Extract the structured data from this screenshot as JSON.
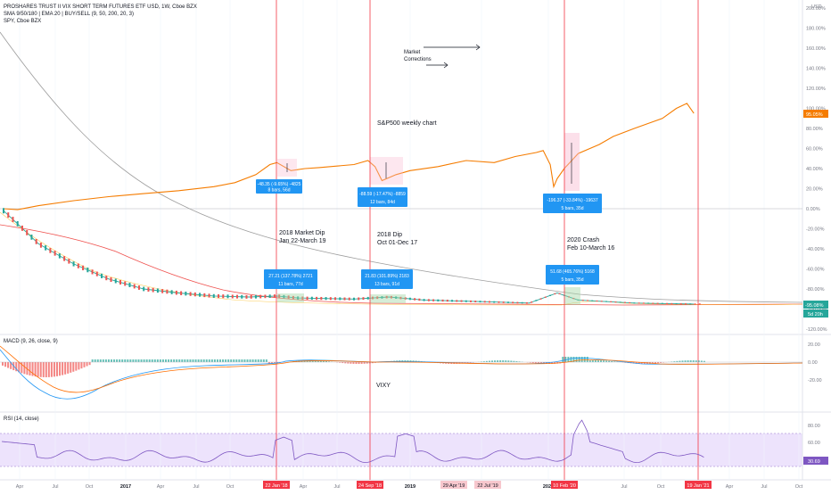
{
  "header": {
    "title": "PROSHARES TRUST II VIX SHORT TERM FUTURES ETF USD, 1W, Cboe BZX",
    "study1": "SMA 9/50/180 | EMA 20 | BUY/SELL (9, 50, 200, 20, 3)",
    "study2": "SPY, Cboe BZX",
    "currency": "USD"
  },
  "annotations": {
    "market_corrections": [
      "Market",
      "Corrections"
    ],
    "sp500": "S&P500 weekly chart",
    "dip2018a": [
      "2018 Market Dip",
      "Jan 22-March 19"
    ],
    "dip2018b": [
      "2018 Dip",
      "Oct 01-Dec 17"
    ],
    "crash2020": [
      "2020 Crash",
      "Feb 10-March 16"
    ],
    "vixy": "VIXY"
  },
  "measure_boxes": [
    {
      "l1": "-48.35 (-9.65%) -4825",
      "l2": "8 bars, 56d"
    },
    {
      "l1": "-88.59 (-17.47%) -8859",
      "l2": "12 bars, 84d"
    },
    {
      "l1": "-196.37 (-33.84%) -19637",
      "l2": "5 bars, 35d"
    },
    {
      "l1": "27.21 (137.78%) 2721",
      "l2": "11 bars, 77d"
    },
    {
      "l1": "21.83 (101.89%) 2183",
      "l2": "13 bars, 91d"
    },
    {
      "l1": "51.68 (465.76%) 5168",
      "l2": "5 bars, 35d"
    }
  ],
  "badges": {
    "spy_pct": "95.05%",
    "vixy_pct": "-95.08%",
    "vixy_time": "5d 20h",
    "rsi_val": "30.69"
  },
  "panels": {
    "macd_label": "MACD (9, 26, close, 9)",
    "rsi_label": "RSI (14, close)"
  },
  "chart_data": {
    "type": "line",
    "price_axis_ticks": [
      "200.00%",
      "180.00%",
      "160.00%",
      "140.00%",
      "120.00%",
      "100.00%",
      "80.00%",
      "60.00%",
      "40.00%",
      "20.00%",
      "0.00%",
      "-20.00%",
      "-40.00%",
      "-60.00%",
      "-80.00%",
      "-100.00%",
      "-120.00%"
    ],
    "macd_axis_ticks": [
      "20.00",
      "0.00",
      "-20.00"
    ],
    "rsi_axis_ticks": [
      "80.00",
      "60.00",
      "40.00"
    ],
    "x_ticks": [
      "Apr",
      "Jul",
      "Oct",
      "2017",
      "Apr",
      "Jul",
      "Oct",
      "Apr",
      "Jul",
      "2019",
      "Oct",
      "2020",
      "Jul",
      "Oct",
      "Apr",
      "Jul",
      "Oct"
    ],
    "date_markers": [
      "22 Jan '18",
      "24 Sep '18",
      "29 Apr '19",
      "22 Jul '19",
      "10 Feb '20",
      "19 Jan '21"
    ],
    "series": [
      {
        "name": "SPY, Cboe BZX",
        "color": "#f57c00",
        "values": [
          [
            0,
            0
          ],
          [
            0.02,
            -1
          ],
          [
            0.05,
            3
          ],
          [
            0.1,
            8
          ],
          [
            0.15,
            12
          ],
          [
            0.2,
            15
          ],
          [
            0.25,
            18
          ],
          [
            0.3,
            22
          ],
          [
            0.33,
            26
          ],
          [
            0.36,
            34
          ],
          [
            0.38,
            44
          ],
          [
            0.39,
            46
          ],
          [
            0.41,
            38
          ],
          [
            0.43,
            40
          ],
          [
            0.45,
            41
          ],
          [
            0.5,
            44
          ],
          [
            0.52,
            48
          ],
          [
            0.53,
            42
          ],
          [
            0.54,
            28
          ],
          [
            0.56,
            34
          ],
          [
            0.58,
            38
          ],
          [
            0.62,
            42
          ],
          [
            0.66,
            48
          ],
          [
            0.7,
            46
          ],
          [
            0.73,
            52
          ],
          [
            0.76,
            56
          ],
          [
            0.77,
            58
          ],
          [
            0.78,
            44
          ],
          [
            0.785,
            22
          ],
          [
            0.79,
            30
          ],
          [
            0.8,
            40
          ],
          [
            0.82,
            55
          ],
          [
            0.85,
            64
          ],
          [
            0.87,
            72
          ],
          [
            0.9,
            80
          ],
          [
            0.92,
            85
          ],
          [
            0.94,
            90
          ],
          [
            0.96,
            100
          ],
          [
            0.975,
            105
          ],
          [
            0.985,
            95
          ]
        ]
      },
      {
        "name": "PROSHARES TRUST II VIX SHORT TERM FUTURES ETF",
        "color": "#26a69a",
        "values": [
          [
            0,
            -2
          ],
          [
            0.02,
            -15
          ],
          [
            0.05,
            -35
          ],
          [
            0.1,
            -55
          ],
          [
            0.15,
            -70
          ],
          [
            0.2,
            -80
          ],
          [
            0.25,
            -84
          ],
          [
            0.3,
            -87
          ],
          [
            0.35,
            -88
          ],
          [
            0.39,
            -87
          ],
          [
            0.42,
            -89
          ],
          [
            0.5,
            -90
          ],
          [
            0.55,
            -88
          ],
          [
            0.6,
            -91
          ],
          [
            0.7,
            -93
          ],
          [
            0.75,
            -94
          ],
          [
            0.79,
            -84
          ],
          [
            0.82,
            -91
          ],
          [
            0.9,
            -94
          ],
          [
            0.985,
            -95
          ]
        ]
      }
    ],
    "ylim": [
      -120,
      200
    ]
  }
}
